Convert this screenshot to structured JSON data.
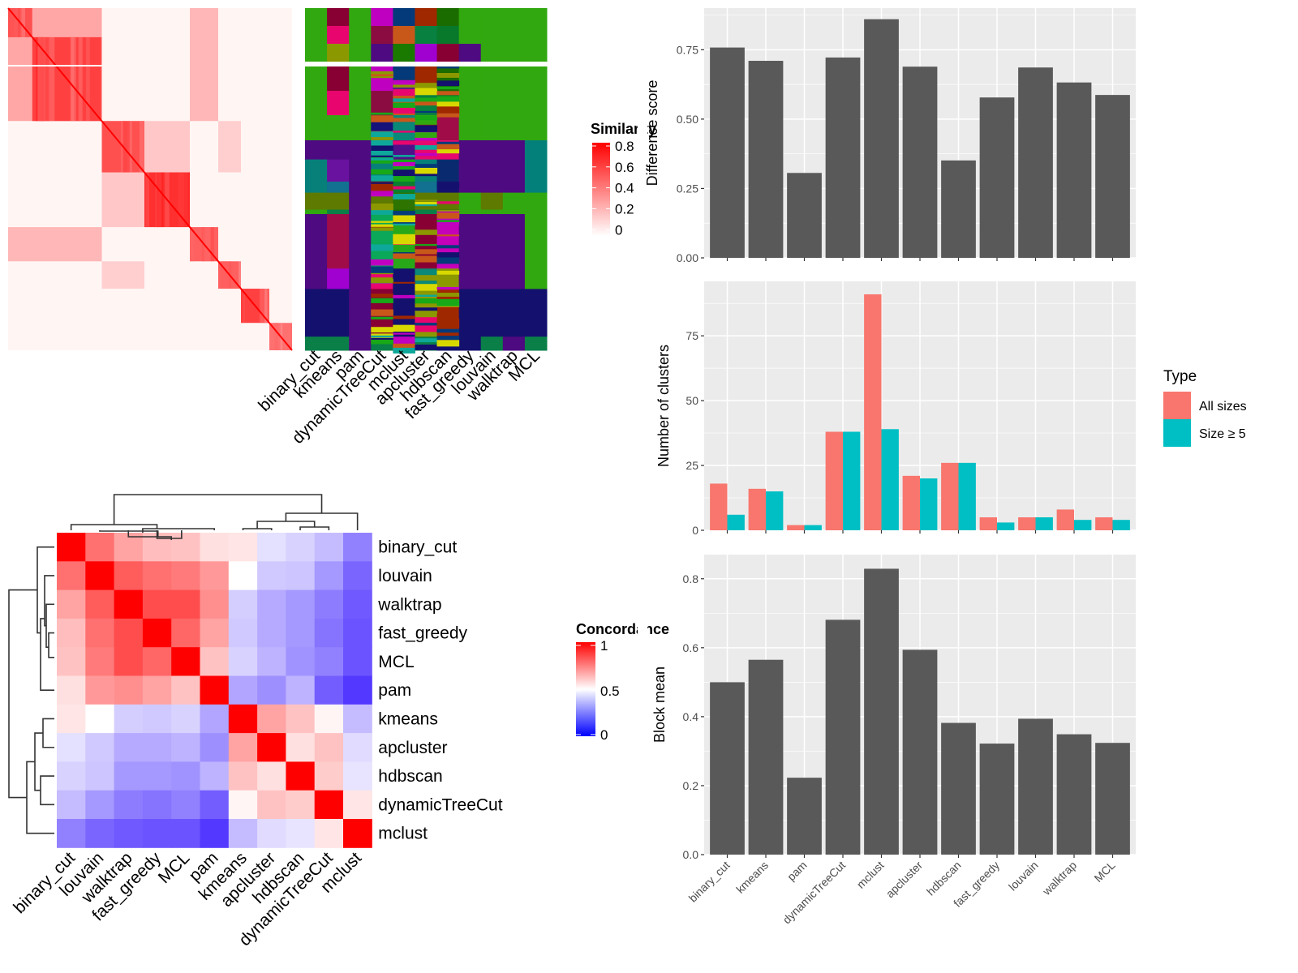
{
  "figure": {
    "methods_order_bar": [
      "binary_cut",
      "kmeans",
      "pam",
      "dynamicTreeCut",
      "mclust",
      "apcluster",
      "hdbscan",
      "fast_greedy",
      "louvain",
      "walktrap",
      "MCL"
    ]
  },
  "colors": {
    "bar_gray": "#595959",
    "panel_bg": "#ebebeb",
    "all_sizes": "#F8766D",
    "size_ge5": "#00BFC4",
    "heat_red": "#ff0000",
    "heat_blue": "#0000ff",
    "white": "#ffffff"
  },
  "chart_data": [
    {
      "id": "similarity_heatmap",
      "type": "heatmap",
      "title": "",
      "legend": {
        "title": "Similarity",
        "ticks": [
          "0.8",
          "0.6",
          "0.4",
          "0.2",
          "0"
        ],
        "range": [
          0,
          0.8
        ]
      },
      "blocks": [
        {
          "start": 0.0,
          "end": 0.085,
          "value": 0.55
        },
        {
          "start": 0.085,
          "end": 0.33,
          "value": 0.6
        },
        {
          "start": 0.33,
          "end": 0.48,
          "value": 0.55
        },
        {
          "start": 0.48,
          "end": 0.64,
          "value": 0.65
        },
        {
          "start": 0.64,
          "end": 0.74,
          "value": 0.5
        },
        {
          "start": 0.74,
          "end": 0.82,
          "value": 0.5
        },
        {
          "start": 0.82,
          "end": 0.92,
          "value": 0.6
        },
        {
          "start": 0.92,
          "end": 1.0,
          "value": 0.45
        }
      ],
      "note": "approximate block structure of consensus similarity matrix"
    },
    {
      "id": "cluster_assignment",
      "type": "heatmap",
      "columns": [
        "binary_cut",
        "kmeans",
        "pam",
        "dynamicTreeCut",
        "mclust",
        "apcluster",
        "hdbscan",
        "fast_greedy",
        "louvain",
        "walktrap",
        "MCL"
      ],
      "segments": [
        {
          "start": 0.0,
          "end": 0.165,
          "colors": [
            "#31a80f",
            "#880033",
            "#31a80f",
            "#c000c0",
            "#053a7a",
            "#a02800",
            "#1a6c00",
            "#31a80f",
            "#31a80f",
            "#31a80f",
            "#31a80f"
          ]
        },
        {
          "start": 0.165,
          "end": 0.33,
          "colors": [
            "#31a80f",
            "#e8066e",
            "#31a80f",
            "#8b0c40",
            "#c8581a",
            "#088040",
            "#08782a",
            "#31a80f",
            "#31a80f",
            "#31a80f",
            "#31a80f"
          ]
        },
        {
          "start": 0.33,
          "end": 0.5,
          "colors": [
            "#31a80f",
            "#31a80f",
            "#31a80f",
            "#15127a",
            "#0a8878",
            "#31a80f",
            "#a00c48",
            "#31a80f",
            "#31a80f",
            "#31a80f",
            "#31a80f"
          ]
        },
        {
          "start": 0.5,
          "end": 0.63,
          "colors": [
            "#4e0a80",
            "#4e0a80",
            "#4e0a80",
            "#0ea89a",
            "#50108a",
            "#e6086e",
            "#e6086e",
            "#4e0a80",
            "#4e0a80",
            "#4e0a80",
            "#04807a"
          ]
        },
        {
          "start": 0.63,
          "end": 0.78,
          "colors": [
            "#07807a",
            "#6a12a0",
            "#4e0a80",
            "#07807a",
            "#18a818",
            "#07807a",
            "#0a2a70",
            "#4e0a80",
            "#4e0a80",
            "#4e0a80",
            "#04807a"
          ]
        },
        {
          "start": 0.78,
          "end": 0.855,
          "colors": [
            "#07807a",
            "#127090",
            "#4e0a80",
            "#a02800",
            "#0a8030",
            "#127090",
            "#14106e",
            "#4e0a80",
            "#4e0a80",
            "#4e0a80",
            "#04807a"
          ]
        },
        {
          "start": 0.855,
          "end": 0.97,
          "colors": [
            "#5e7a00",
            "#5e7a00",
            "#4e0a80",
            "#5e7a00",
            "#2e7400",
            "#5e7a00",
            "#5e7a00",
            "#31a80f",
            "#5e7a00",
            "#31a80f",
            "#31a80f"
          ]
        },
        {
          "start": 0.97,
          "end": 1.0,
          "colors": [
            "#31a80f",
            "#0a8048",
            "#4e0a80",
            "#0a8048",
            "#1a6c00",
            "#0a8048",
            "#1a6c00",
            "#31a80f",
            "#31a80f",
            "#31a80f",
            "#31a80f"
          ]
        }
      ],
      "segments_lower": [
        {
          "start": 0.0,
          "end": 0.4,
          "colors": [
            "#4e0a80",
            "#a00c48",
            "#4e0a80",
            "#0aa858",
            "#28a818",
            "#880033",
            "#c400b8",
            "#4e0a80",
            "#4e0a80",
            "#4e0a80",
            "#31a80f"
          ]
        },
        {
          "start": 0.4,
          "end": 0.55,
          "colors": [
            "#4e0a80",
            "#a000d0",
            "#4e0a80",
            "#e8066e",
            "#14106e",
            "#0a8878",
            "#8c9800",
            "#4e0a80",
            "#4e0a80",
            "#4e0a80",
            "#31a80f"
          ]
        },
        {
          "start": 0.55,
          "end": 0.9,
          "colors": [
            "#14106e",
            "#14106e",
            "#4e0a80",
            "#880033",
            "#14106e",
            "#8c9800",
            "#a02800",
            "#14106e",
            "#14106e",
            "#14106e",
            "#14106e"
          ]
        },
        {
          "start": 0.9,
          "end": 1.0,
          "colors": [
            "#0a8048",
            "#0a8048",
            "#4e0a80",
            "#0a8048",
            "#c000c0",
            "#0a8048",
            "#14106e",
            "#14106e",
            "#0a8048",
            "#4e0a80",
            "#0a8048"
          ]
        }
      ]
    },
    {
      "id": "concordance_heatmap",
      "type": "heatmap",
      "labels": [
        "binary_cut",
        "louvain",
        "walktrap",
        "fast_greedy",
        "MCL",
        "pam",
        "kmeans",
        "apcluster",
        "hdbscan",
        "dynamicTreeCut",
        "mclust"
      ],
      "legend": {
        "title": "Concordance",
        "ticks": [
          "1",
          "0.5",
          "0"
        ],
        "range": [
          0,
          1
        ]
      },
      "matrix": [
        [
          1.0,
          0.78,
          0.68,
          0.63,
          0.62,
          0.56,
          0.55,
          0.43,
          0.4,
          0.35,
          0.22
        ],
        [
          0.78,
          1.0,
          0.82,
          0.78,
          0.76,
          0.7,
          0.5,
          0.38,
          0.37,
          0.27,
          0.16
        ],
        [
          0.68,
          0.82,
          1.0,
          0.85,
          0.85,
          0.72,
          0.39,
          0.31,
          0.27,
          0.21,
          0.13
        ],
        [
          0.63,
          0.78,
          0.85,
          1.0,
          0.8,
          0.68,
          0.38,
          0.31,
          0.27,
          0.19,
          0.12
        ],
        [
          0.62,
          0.76,
          0.85,
          0.8,
          1.0,
          0.62,
          0.4,
          0.33,
          0.26,
          0.22,
          0.12
        ],
        [
          0.56,
          0.7,
          0.72,
          0.68,
          0.62,
          1.0,
          0.3,
          0.25,
          0.33,
          0.14,
          0.06
        ],
        [
          0.55,
          0.5,
          0.39,
          0.38,
          0.4,
          0.3,
          1.0,
          0.68,
          0.62,
          0.52,
          0.35
        ],
        [
          0.43,
          0.38,
          0.31,
          0.31,
          0.33,
          0.25,
          0.68,
          1.0,
          0.56,
          0.62,
          0.42
        ],
        [
          0.4,
          0.37,
          0.27,
          0.27,
          0.26,
          0.33,
          0.62,
          0.56,
          1.0,
          0.6,
          0.44
        ],
        [
          0.35,
          0.27,
          0.21,
          0.19,
          0.22,
          0.14,
          0.52,
          0.62,
          0.6,
          1.0,
          0.55
        ],
        [
          0.22,
          0.16,
          0.13,
          0.12,
          0.12,
          0.06,
          0.35,
          0.42,
          0.44,
          0.55,
          1.0
        ]
      ]
    },
    {
      "id": "difference_score",
      "type": "bar",
      "categories": [
        "binary_cut",
        "kmeans",
        "pam",
        "dynamicTreeCut",
        "mclust",
        "apcluster",
        "hdbscan",
        "fast_greedy",
        "louvain",
        "walktrap",
        "MCL"
      ],
      "values": [
        0.758,
        0.71,
        0.306,
        0.722,
        0.86,
        0.689,
        0.351,
        0.578,
        0.686,
        0.632,
        0.587
      ],
      "xlabel": "",
      "ylabel": "Difference score",
      "ylim": [
        0,
        0.9
      ],
      "yticks": [
        0,
        0.25,
        0.5,
        0.75
      ],
      "ytick_labels": [
        "0.00",
        "0.25",
        "0.50",
        "0.75"
      ],
      "grid": true
    },
    {
      "id": "number_of_clusters",
      "type": "bar",
      "categories": [
        "binary_cut",
        "kmeans",
        "pam",
        "dynamicTreeCut",
        "mclust",
        "apcluster",
        "hdbscan",
        "fast_greedy",
        "louvain",
        "walktrap",
        "MCL"
      ],
      "series": [
        {
          "name": "All sizes",
          "values": [
            18,
            16,
            2,
            38,
            91,
            21,
            26,
            5,
            5,
            8,
            5
          ]
        },
        {
          "name": "Size ≥ 5",
          "values": [
            6,
            15,
            2,
            38,
            39,
            20,
            26,
            3,
            5,
            4,
            4
          ]
        }
      ],
      "xlabel": "",
      "ylabel": "Number of clusters",
      "ylim": [
        0,
        96
      ],
      "yticks": [
        0,
        25,
        50,
        75
      ],
      "ytick_labels": [
        "0",
        "25",
        "50",
        "75"
      ],
      "legend": {
        "title": "Type",
        "position": "right"
      },
      "grid": true
    },
    {
      "id": "block_mean",
      "type": "bar",
      "categories": [
        "binary_cut",
        "kmeans",
        "pam",
        "dynamicTreeCut",
        "mclust",
        "apcluster",
        "hdbscan",
        "fast_greedy",
        "louvain",
        "walktrap",
        "MCL"
      ],
      "values": [
        0.5,
        0.565,
        0.223,
        0.681,
        0.829,
        0.594,
        0.382,
        0.322,
        0.394,
        0.349,
        0.324
      ],
      "xlabel": "",
      "ylabel": "Block mean",
      "ylim": [
        0,
        0.87
      ],
      "yticks": [
        0,
        0.2,
        0.4,
        0.6,
        0.8
      ],
      "ytick_labels": [
        "0.0",
        "0.2",
        "0.4",
        "0.6",
        "0.8"
      ],
      "grid": true
    }
  ]
}
